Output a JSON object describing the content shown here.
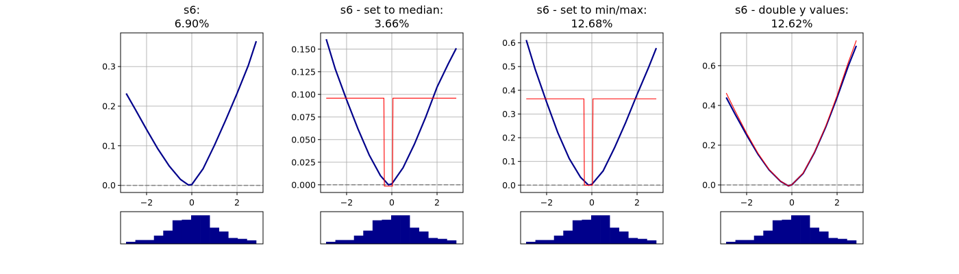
{
  "figure": {
    "background": "#ffffff",
    "curve_color": "#00008b",
    "modified_color": "#ff0000",
    "baseline_color": "#808080",
    "hist_color": "#00008b"
  },
  "chart_data": [
    {
      "type": "line",
      "title_line1": "s6:",
      "title_line2": "6.90%",
      "xlim": [
        -3.15,
        3.15
      ],
      "ylim": [
        -0.018,
        0.385
      ],
      "xticks": [
        -2,
        0,
        2
      ],
      "yticks": [
        0.0,
        0.1,
        0.2,
        0.3
      ],
      "ytick_labels": [
        "0.0",
        "0.1",
        "0.2",
        "0.3"
      ],
      "grid": true,
      "series": [
        {
          "role": "original",
          "x": [
            -2.9,
            -2.5,
            -2.0,
            -1.5,
            -1.0,
            -0.5,
            -0.15,
            0.0,
            0.5,
            1.0,
            1.5,
            2.0,
            2.5,
            2.85
          ],
          "y": [
            0.232,
            0.192,
            0.141,
            0.092,
            0.049,
            0.015,
            0.001,
            0.002,
            0.042,
            0.101,
            0.165,
            0.232,
            0.303,
            0.364
          ]
        }
      ],
      "hline": 0.0,
      "histogram": [
        0.07,
        0.13,
        0.13,
        0.28,
        0.45,
        0.8,
        0.82,
        0.97,
        0.97,
        0.55,
        0.42,
        0.2,
        0.17,
        0.12
      ]
    },
    {
      "type": "line",
      "title_line1": "s6 - set to median:",
      "title_line2": "3.66%",
      "xlim": [
        -3.15,
        3.15
      ],
      "ylim": [
        -0.0085,
        0.168
      ],
      "xticks": [
        -2,
        0,
        2
      ],
      "yticks": [
        0.0,
        0.025,
        0.05,
        0.075,
        0.1,
        0.125,
        0.15
      ],
      "ytick_labels": [
        "0.000",
        "0.025",
        "0.050",
        "0.075",
        "0.100",
        "0.125",
        "0.150"
      ],
      "grid": true,
      "series": [
        {
          "role": "original",
          "x": [
            -2.9,
            -2.5,
            -2.0,
            -1.5,
            -1.0,
            -0.5,
            -0.15,
            0.0,
            0.5,
            1.0,
            1.5,
            2.0,
            2.5,
            2.85
          ],
          "y": [
            0.161,
            0.128,
            0.094,
            0.062,
            0.033,
            0.01,
            0.0,
            0.001,
            0.019,
            0.045,
            0.075,
            0.108,
            0.134,
            0.151
          ]
        },
        {
          "role": "modified",
          "x": [
            -2.9,
            -0.35,
            -0.33,
            0.03,
            0.05,
            2.85
          ],
          "y": [
            0.0958,
            0.0958,
            -0.0015,
            -0.0015,
            0.0958,
            0.0958
          ]
        }
      ],
      "hline": 0.0,
      "histogram": [
        0.07,
        0.13,
        0.13,
        0.28,
        0.45,
        0.8,
        0.82,
        0.97,
        0.97,
        0.55,
        0.42,
        0.2,
        0.17,
        0.12
      ]
    },
    {
      "type": "line",
      "title_line1": "s6 - set to min/max:",
      "title_line2": "12.68%",
      "xlim": [
        -3.15,
        3.15
      ],
      "ylim": [
        -0.031,
        0.642
      ],
      "xticks": [
        -2,
        0,
        2
      ],
      "yticks": [
        0.0,
        0.1,
        0.2,
        0.3,
        0.4,
        0.5,
        0.6
      ],
      "ytick_labels": [
        "0.0",
        "0.1",
        "0.2",
        "0.3",
        "0.4",
        "0.5",
        "0.6"
      ],
      "grid": true,
      "series": [
        {
          "role": "original",
          "x": [
            -2.9,
            -2.5,
            -2.0,
            -1.5,
            -1.0,
            -0.5,
            -0.15,
            0.0,
            0.5,
            1.0,
            1.5,
            2.0,
            2.5,
            2.85
          ],
          "y": [
            0.612,
            0.487,
            0.35,
            0.22,
            0.112,
            0.033,
            0.0,
            0.003,
            0.06,
            0.157,
            0.265,
            0.382,
            0.494,
            0.578
          ]
        },
        {
          "role": "modified",
          "x": [
            -2.9,
            -0.35,
            -0.33,
            0.03,
            0.05,
            2.85
          ],
          "y": [
            0.364,
            0.364,
            0.0,
            0.0,
            0.364,
            0.364
          ]
        }
      ],
      "hline": 0.0,
      "histogram": [
        0.07,
        0.13,
        0.13,
        0.28,
        0.45,
        0.8,
        0.82,
        0.97,
        0.97,
        0.55,
        0.42,
        0.2,
        0.17,
        0.12
      ]
    },
    {
      "type": "line",
      "title_line1": "s6 - double y values:",
      "title_line2": "12.62%",
      "xlim": [
        -3.15,
        3.15
      ],
      "ylim": [
        -0.038,
        0.765
      ],
      "xticks": [
        -2,
        0,
        2
      ],
      "yticks": [
        0.0,
        0.2,
        0.4,
        0.6
      ],
      "ytick_labels": [
        "0.0",
        "0.2",
        "0.4",
        "0.6"
      ],
      "grid": true,
      "series": [
        {
          "role": "original",
          "x": [
            -2.9,
            -2.5,
            -2.0,
            -1.5,
            -1.0,
            -0.5,
            -0.15,
            0.0,
            0.5,
            1.0,
            1.5,
            2.0,
            2.5,
            2.85
          ],
          "y": [
            0.44,
            0.354,
            0.251,
            0.155,
            0.075,
            0.018,
            -0.005,
            0.001,
            0.058,
            0.163,
            0.292,
            0.44,
            0.6,
            0.7
          ]
        },
        {
          "role": "modified",
          "x": [
            -2.9,
            -2.5,
            -2.0,
            -1.5,
            -1.0,
            -0.5,
            -0.15,
            0.0,
            0.5,
            1.0,
            1.5,
            2.0,
            2.5,
            2.85
          ],
          "y": [
            0.462,
            0.37,
            0.26,
            0.16,
            0.077,
            0.019,
            -0.005,
            0.001,
            0.06,
            0.165,
            0.296,
            0.45,
            0.618,
            0.727
          ]
        }
      ],
      "hline": 0.0,
      "histogram": [
        0.07,
        0.13,
        0.13,
        0.28,
        0.45,
        0.8,
        0.82,
        0.97,
        0.97,
        0.55,
        0.42,
        0.2,
        0.17,
        0.12
      ]
    }
  ]
}
